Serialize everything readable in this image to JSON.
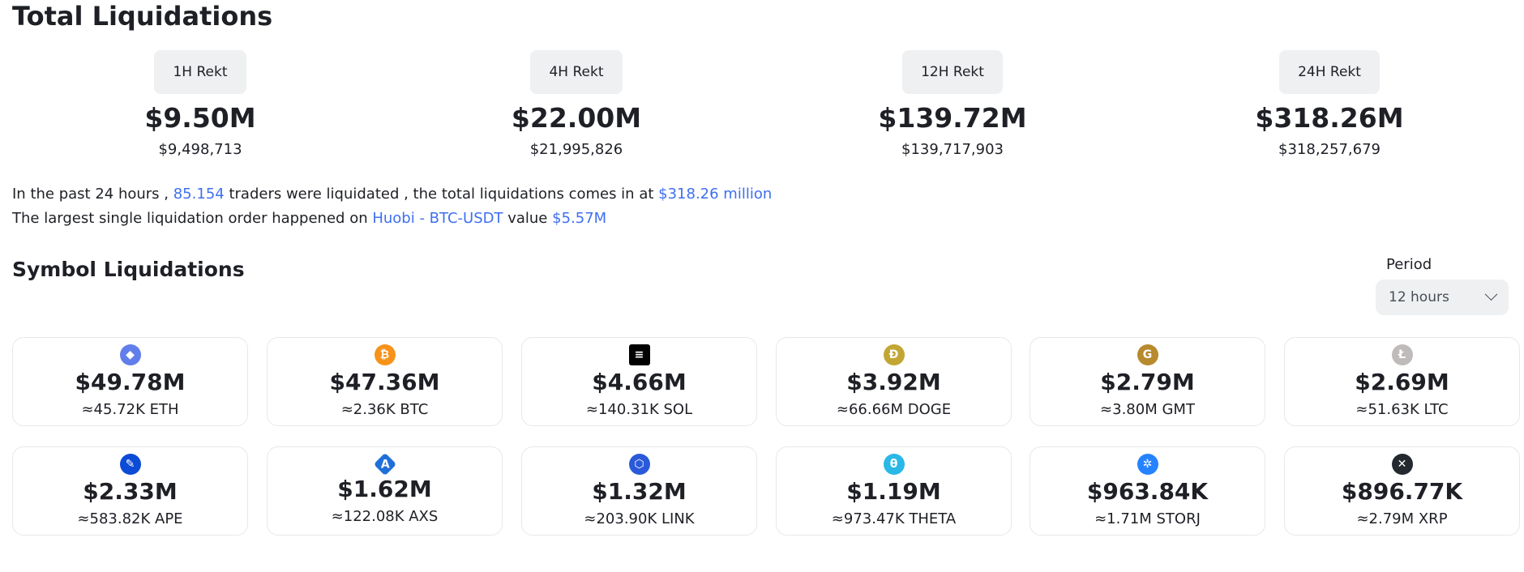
{
  "page_title": "Total Liquidations",
  "rekt": [
    {
      "label": "1H Rekt",
      "value": "$9.50M",
      "exact": "$9,498,713"
    },
    {
      "label": "4H Rekt",
      "value": "$22.00M",
      "exact": "$21,995,826"
    },
    {
      "label": "12H Rekt",
      "value": "$139.72M",
      "exact": "$139,717,903"
    },
    {
      "label": "24H Rekt",
      "value": "$318.26M",
      "exact": "$318,257,679"
    }
  ],
  "summary": {
    "line1_a": "In the past 24 hours ,",
    "traders": "85.154",
    "line1_b": "traders were liquidated , the total liquidations comes in at",
    "total": "$318.26 million",
    "line2_a": "The largest single liquidation order happened on",
    "exchange_pair": "Huobi - BTC-USDT",
    "line2_b": "value",
    "largest_value": "$5.57M"
  },
  "symbol_section": {
    "title": "Symbol Liquidations",
    "period_label": "Period",
    "period_selected": "12 hours"
  },
  "colors": {
    "accent": "#3f6ff0",
    "badge_bg": "#eef0f2",
    "card_border": "#e6e8ea"
  },
  "cards": [
    {
      "symbol": "ETH",
      "icon": "eth-icon",
      "glyph": "◆",
      "color": "#627eea",
      "usd": "$49.78M",
      "amount": "≈45.72K ETH"
    },
    {
      "symbol": "BTC",
      "icon": "btc-icon",
      "glyph": "₿",
      "color": "#f7931a",
      "usd": "$47.36M",
      "amount": "≈2.36K BTC"
    },
    {
      "symbol": "SOL",
      "icon": "sol-icon",
      "glyph": "≡",
      "color": "#000000",
      "usd": "$4.66M",
      "amount": "≈140.31K SOL"
    },
    {
      "symbol": "DOGE",
      "icon": "doge-icon",
      "glyph": "Ð",
      "color": "#c2a633",
      "usd": "$3.92M",
      "amount": "≈66.66M DOGE"
    },
    {
      "symbol": "GMT",
      "icon": "gmt-icon",
      "glyph": "G",
      "color": "#b88a2e",
      "usd": "$2.79M",
      "amount": "≈3.80M GMT"
    },
    {
      "symbol": "LTC",
      "icon": "ltc-icon",
      "glyph": "Ł",
      "color": "#bfbbbb",
      "usd": "$2.69M",
      "amount": "≈51.63K LTC"
    },
    {
      "symbol": "APE",
      "icon": "ape-icon",
      "glyph": "✎",
      "color": "#0b4bd6",
      "usd": "$2.33M",
      "amount": "≈583.82K APE"
    },
    {
      "symbol": "AXS",
      "icon": "axs-icon",
      "glyph": "A",
      "color": "#1f6fd9",
      "usd": "$1.62M",
      "amount": "≈122.08K AXS"
    },
    {
      "symbol": "LINK",
      "icon": "link-icon",
      "glyph": "⬡",
      "color": "#2a5ada",
      "usd": "$1.32M",
      "amount": "≈203.90K LINK"
    },
    {
      "symbol": "THETA",
      "icon": "theta-icon",
      "glyph": "θ",
      "color": "#2ab8e6",
      "usd": "$1.19M",
      "amount": "≈973.47K THETA"
    },
    {
      "symbol": "STORJ",
      "icon": "storj-icon",
      "glyph": "✲",
      "color": "#2683ff",
      "usd": "$963.84K",
      "amount": "≈1.71M STORJ"
    },
    {
      "symbol": "XRP",
      "icon": "xrp-icon",
      "glyph": "✕",
      "color": "#23292f",
      "usd": "$896.77K",
      "amount": "≈2.79M XRP"
    }
  ]
}
